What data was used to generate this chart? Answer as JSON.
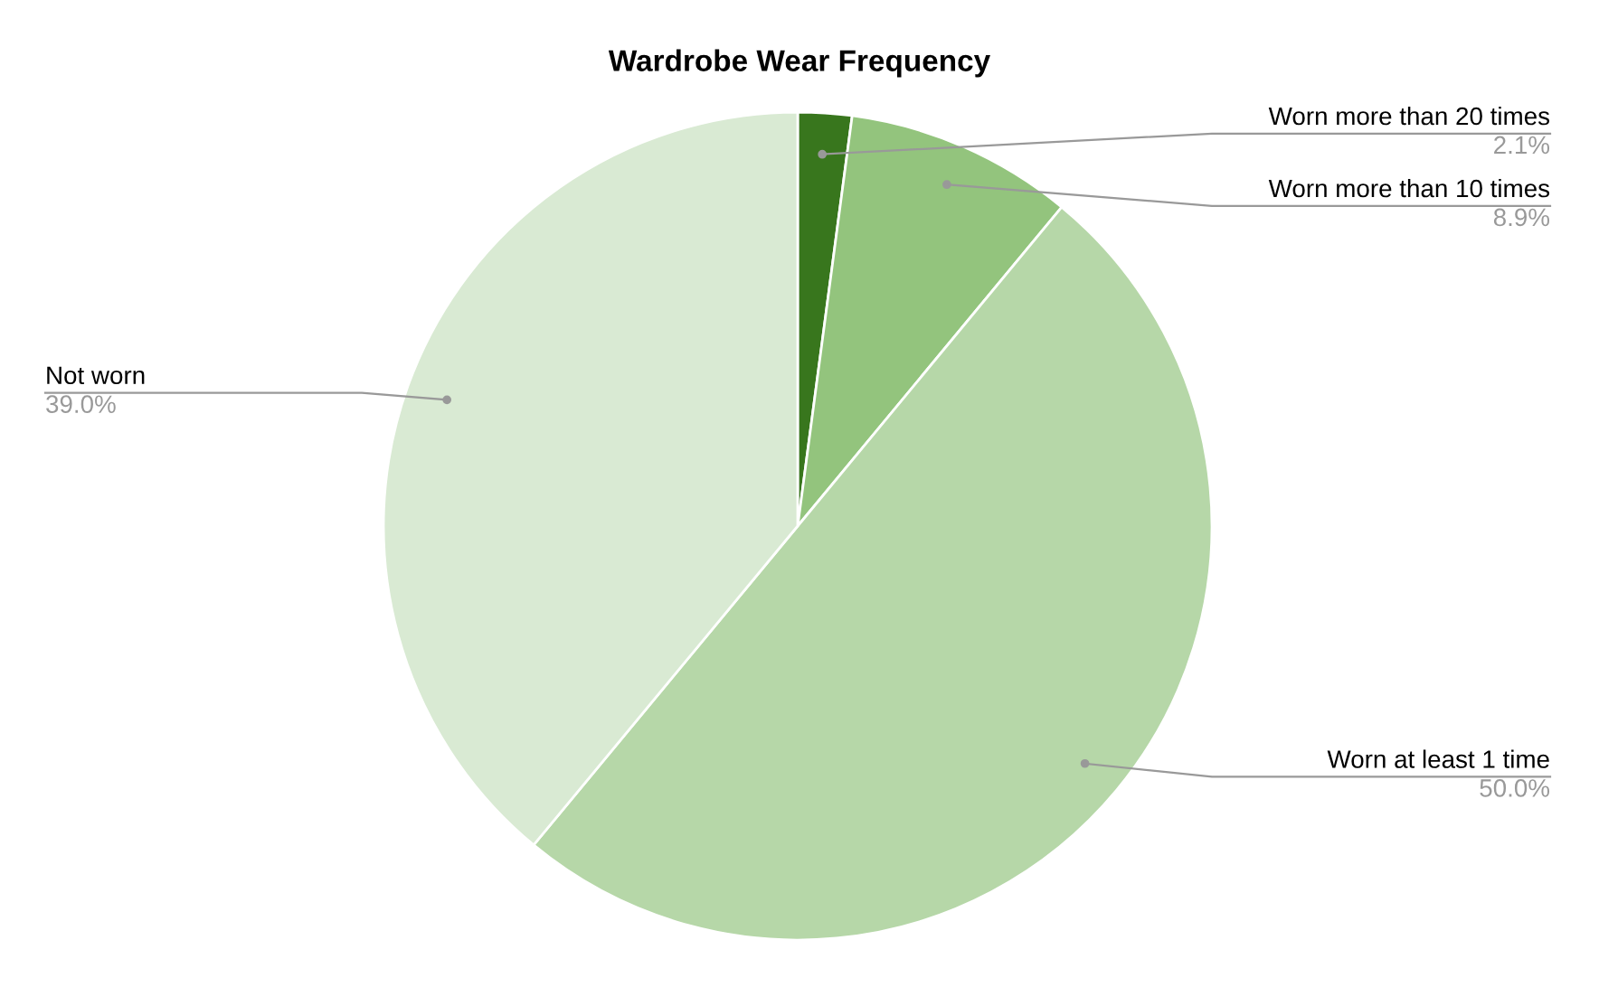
{
  "chart_data": {
    "type": "pie",
    "title": "Wardrobe Wear Frequency",
    "categories": [
      "Worn more than 20 times",
      "Worn more than 10 times",
      "Worn at least 1 time",
      "Not worn"
    ],
    "values": [
      2.1,
      8.9,
      50.0,
      39.0
    ],
    "colors": [
      "#38761d",
      "#93c47d",
      "#b6d7a8",
      "#d9ead3"
    ],
    "value_labels": [
      "2.1%",
      "8.9%",
      "50.0%",
      "39.0%"
    ],
    "legend": false
  }
}
